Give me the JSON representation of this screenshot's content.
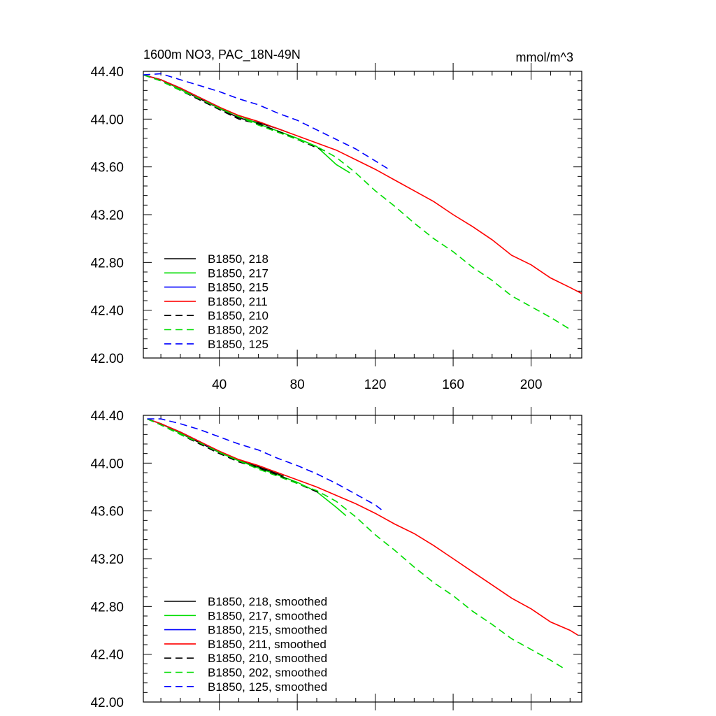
{
  "chart_data": [
    {
      "type": "line",
      "title": "1600m NO3, PAC_18N-49N",
      "units": "mmol/m^3",
      "xlim": [
        1,
        226
      ],
      "ylim": [
        42.0,
        44.4
      ],
      "yticks": [
        "44.40",
        "44.00",
        "43.60",
        "43.20",
        "42.80",
        "42.40",
        "42.00"
      ],
      "xticks": [
        "40",
        "80",
        "120",
        "160",
        "200"
      ],
      "legend_position": "bottom-left",
      "series": [
        {
          "name": "B1850, 218",
          "color": "#000000",
          "dash": "solid",
          "x": [
            1,
            10,
            20,
            30,
            40,
            50,
            60,
            70,
            75
          ],
          "y": [
            44.37,
            44.33,
            44.25,
            44.17,
            44.09,
            44.01,
            43.97,
            43.92,
            43.89
          ]
        },
        {
          "name": "B1850, 217",
          "color": "#00dd00",
          "dash": "solid",
          "x": [
            1,
            10,
            20,
            30,
            40,
            50,
            60,
            70,
            80,
            90,
            100,
            107
          ],
          "y": [
            44.37,
            44.33,
            44.25,
            44.18,
            44.09,
            44.03,
            43.96,
            43.9,
            43.84,
            43.77,
            43.62,
            43.55
          ]
        },
        {
          "name": "B1850, 215",
          "color": "#0000ff",
          "dash": "solid",
          "x": [
            1,
            10,
            20,
            30,
            40
          ],
          "y": [
            44.37,
            44.33,
            44.26,
            44.18,
            44.1
          ]
        },
        {
          "name": "B1850, 211",
          "color": "#ff0000",
          "dash": "solid",
          "x": [
            1,
            10,
            20,
            30,
            40,
            50,
            60,
            70,
            80,
            90,
            100,
            110,
            120,
            130,
            140,
            150,
            160,
            170,
            180,
            190,
            200,
            210,
            220,
            226
          ],
          "y": [
            44.37,
            44.33,
            44.26,
            44.18,
            44.1,
            44.03,
            43.98,
            43.92,
            43.86,
            43.8,
            43.74,
            43.66,
            43.58,
            43.49,
            43.4,
            43.31,
            43.2,
            43.1,
            42.99,
            42.86,
            42.78,
            42.67,
            42.59,
            42.54
          ]
        },
        {
          "name": "B1850, 210",
          "color": "#000000",
          "dash": "dashed",
          "x": [
            1,
            10,
            20,
            30,
            40,
            50,
            60,
            70,
            80,
            90,
            95
          ],
          "y": [
            44.37,
            44.32,
            44.24,
            44.16,
            44.08,
            44.0,
            43.96,
            43.9,
            43.83,
            43.76,
            43.73
          ]
        },
        {
          "name": "B1850, 202",
          "color": "#00dd00",
          "dash": "dashed",
          "x": [
            1,
            10,
            20,
            30,
            40,
            50,
            60,
            70,
            80,
            90,
            100,
            110,
            120,
            130,
            140,
            150,
            160,
            170,
            180,
            190,
            200,
            210,
            220
          ],
          "y": [
            44.37,
            44.32,
            44.24,
            44.17,
            44.09,
            44.02,
            43.95,
            43.89,
            43.83,
            43.77,
            43.68,
            43.55,
            43.4,
            43.27,
            43.13,
            43.0,
            42.89,
            42.76,
            42.65,
            42.52,
            42.43,
            42.34,
            42.24
          ]
        },
        {
          "name": "B1850, 125",
          "color": "#0000ff",
          "dash": "dashed",
          "x": [
            1,
            10,
            20,
            30,
            40,
            50,
            60,
            70,
            80,
            90,
            100,
            110,
            120,
            127
          ],
          "y": [
            44.37,
            44.38,
            44.33,
            44.28,
            44.23,
            44.17,
            44.12,
            44.05,
            43.99,
            43.91,
            43.83,
            43.75,
            43.65,
            43.58
          ]
        }
      ]
    },
    {
      "type": "line",
      "ylim": [
        42.0,
        44.4
      ],
      "xlim": [
        1,
        226
      ],
      "yticks": [
        "44.40",
        "44.00",
        "43.60",
        "43.20",
        "42.80",
        "42.40",
        "42.00"
      ],
      "legend_position": "bottom-left",
      "series": [
        {
          "name": "B1850, 218, smoothed",
          "color": "#000000",
          "dash": "solid",
          "x": [
            3,
            10,
            20,
            30,
            40,
            50,
            60,
            70,
            73
          ],
          "y": [
            44.37,
            44.33,
            44.25,
            44.17,
            44.09,
            44.02,
            43.97,
            43.91,
            43.89
          ]
        },
        {
          "name": "B1850, 217, smoothed",
          "color": "#00dd00",
          "dash": "solid",
          "x": [
            3,
            10,
            20,
            30,
            40,
            50,
            60,
            70,
            80,
            90,
            100,
            105
          ],
          "y": [
            44.37,
            44.33,
            44.25,
            44.18,
            44.09,
            44.02,
            43.96,
            43.9,
            43.84,
            43.76,
            43.63,
            43.56
          ]
        },
        {
          "name": "B1850, 215, smoothed",
          "color": "#0000ff",
          "dash": "solid",
          "x": [
            3,
            10,
            20,
            30,
            38
          ],
          "y": [
            44.37,
            44.33,
            44.26,
            44.18,
            44.11
          ]
        },
        {
          "name": "B1850, 211, smoothed",
          "color": "#ff0000",
          "dash": "solid",
          "x": [
            3,
            10,
            20,
            30,
            40,
            50,
            60,
            70,
            80,
            90,
            100,
            110,
            120,
            130,
            140,
            150,
            160,
            170,
            180,
            190,
            200,
            210,
            220,
            224
          ],
          "y": [
            44.37,
            44.33,
            44.26,
            44.18,
            44.1,
            44.03,
            43.98,
            43.92,
            43.86,
            43.8,
            43.73,
            43.66,
            43.58,
            43.49,
            43.41,
            43.31,
            43.2,
            43.09,
            42.98,
            42.87,
            42.78,
            42.67,
            42.6,
            42.56
          ]
        },
        {
          "name": "B1850, 210, smoothed",
          "color": "#000000",
          "dash": "dashed",
          "x": [
            3,
            10,
            20,
            30,
            40,
            50,
            60,
            70,
            80,
            90,
            93
          ],
          "y": [
            44.37,
            44.32,
            44.24,
            44.16,
            44.08,
            44.01,
            43.96,
            43.9,
            43.83,
            43.76,
            43.74
          ]
        },
        {
          "name": "B1850, 202, smoothed",
          "color": "#00dd00",
          "dash": "dashed",
          "x": [
            3,
            10,
            20,
            30,
            40,
            50,
            60,
            70,
            80,
            90,
            100,
            110,
            120,
            130,
            140,
            150,
            160,
            170,
            180,
            190,
            200,
            210,
            218
          ],
          "y": [
            44.37,
            44.32,
            44.24,
            44.17,
            44.09,
            44.02,
            43.95,
            43.89,
            43.83,
            43.77,
            43.68,
            43.55,
            43.4,
            43.27,
            43.13,
            43.0,
            42.89,
            42.76,
            42.65,
            42.53,
            42.44,
            42.35,
            42.27
          ]
        },
        {
          "name": "B1850, 125, smoothed",
          "color": "#0000ff",
          "dash": "dashed",
          "x": [
            3,
            10,
            20,
            30,
            40,
            50,
            60,
            70,
            80,
            90,
            100,
            110,
            120,
            124
          ],
          "y": [
            44.37,
            44.37,
            44.33,
            44.28,
            44.22,
            44.16,
            44.11,
            44.04,
            43.98,
            43.91,
            43.83,
            43.74,
            43.65,
            43.6
          ]
        }
      ]
    }
  ]
}
